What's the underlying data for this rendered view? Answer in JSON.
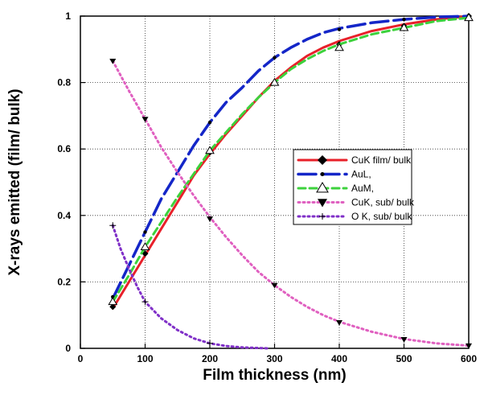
{
  "chart_data": {
    "type": "line",
    "xlabel": "Film thickness (nm)",
    "ylabel": "X-rays emitted (film/ bulk)",
    "xlim": [
      0,
      600
    ],
    "ylim": [
      0,
      1
    ],
    "x_ticks": [
      0,
      100,
      200,
      300,
      400,
      500,
      600
    ],
    "x_tick_labels": [
      "0",
      "100",
      "200",
      "300",
      "400",
      "500",
      "600"
    ],
    "y_ticks": [
      0,
      0.2,
      0.4,
      0.6,
      0.8,
      1
    ],
    "y_tick_labels": [
      "0",
      "0.2",
      "0.4",
      "0.6",
      "0.8",
      "1"
    ],
    "grid": true,
    "legend_position": "center-right",
    "series": [
      {
        "name": "CuK film/ bulk",
        "color": "#e8202a",
        "line": "solid",
        "marker": "diamond",
        "curve_x": [
          50,
          75,
          100,
          125,
          150,
          175,
          200,
          225,
          250,
          275,
          300,
          325,
          350,
          375,
          400,
          450,
          500,
          550,
          600
        ],
        "curve_y": [
          0.12,
          0.2,
          0.28,
          0.36,
          0.44,
          0.52,
          0.585,
          0.645,
          0.7,
          0.755,
          0.805,
          0.845,
          0.88,
          0.905,
          0.925,
          0.955,
          0.975,
          0.99,
          1.0
        ],
        "marker_x": [
          50,
          100,
          200,
          300,
          400,
          500,
          600
        ],
        "marker_y": [
          0.125,
          0.285,
          0.59,
          0.8,
          0.915,
          0.97,
          1.0
        ]
      },
      {
        "name": "AuL,",
        "color": "#1426c8",
        "line": "longdash",
        "marker": "bullet",
        "curve_x": [
          50,
          75,
          100,
          125,
          150,
          175,
          200,
          225,
          250,
          275,
          300,
          325,
          350,
          375,
          400,
          450,
          500,
          550,
          600
        ],
        "curve_y": [
          0.15,
          0.25,
          0.35,
          0.45,
          0.53,
          0.61,
          0.68,
          0.74,
          0.785,
          0.835,
          0.875,
          0.905,
          0.93,
          0.95,
          0.963,
          0.98,
          0.99,
          0.997,
          1.0
        ],
        "marker_x": [
          50,
          100,
          200,
          300,
          400,
          500,
          600
        ],
        "marker_y": [
          0.155,
          0.35,
          0.68,
          0.875,
          0.96,
          0.99,
          1.0
        ]
      },
      {
        "name": "AuM,",
        "color": "#3cd23c",
        "line": "dash",
        "marker": "open-triangle",
        "curve_x": [
          50,
          75,
          100,
          125,
          150,
          175,
          200,
          225,
          250,
          275,
          300,
          325,
          350,
          375,
          400,
          450,
          500,
          550,
          600
        ],
        "curve_y": [
          0.14,
          0.22,
          0.305,
          0.38,
          0.455,
          0.525,
          0.595,
          0.65,
          0.705,
          0.755,
          0.8,
          0.84,
          0.87,
          0.895,
          0.915,
          0.945,
          0.965,
          0.985,
          0.995
        ],
        "marker_x": [
          50,
          100,
          200,
          300,
          400,
          500,
          600
        ],
        "marker_y": [
          0.14,
          0.305,
          0.595,
          0.8,
          0.905,
          0.965,
          0.995
        ]
      },
      {
        "name": "CuK, sub/ bulk",
        "color": "#e060c0",
        "line": "dot",
        "marker": "filled-down-triangle",
        "curve_x": [
          50,
          75,
          100,
          125,
          150,
          175,
          200,
          225,
          250,
          275,
          300,
          325,
          350,
          375,
          400,
          450,
          500,
          550,
          600
        ],
        "curve_y": [
          0.865,
          0.775,
          0.69,
          0.605,
          0.53,
          0.46,
          0.395,
          0.335,
          0.28,
          0.23,
          0.19,
          0.155,
          0.125,
          0.1,
          0.08,
          0.05,
          0.028,
          0.015,
          0.008
        ],
        "marker_x": [
          50,
          100,
          200,
          300,
          400,
          500,
          600
        ],
        "marker_y": [
          0.865,
          0.69,
          0.39,
          0.19,
          0.078,
          0.027,
          0.008
        ]
      },
      {
        "name": "O K, sub/ bulk",
        "color": "#8030c8",
        "line": "dot",
        "marker": "plus",
        "curve_x": [
          50,
          62,
          75,
          88,
          100,
          125,
          150,
          175,
          200,
          225,
          250,
          275,
          290
        ],
        "curve_y": [
          0.37,
          0.3,
          0.24,
          0.185,
          0.14,
          0.09,
          0.055,
          0.03,
          0.015,
          0.007,
          0.003,
          0.001,
          0.0
        ],
        "marker_x": [
          50,
          100,
          200
        ],
        "marker_y": [
          0.37,
          0.14,
          0.015
        ]
      }
    ]
  }
}
